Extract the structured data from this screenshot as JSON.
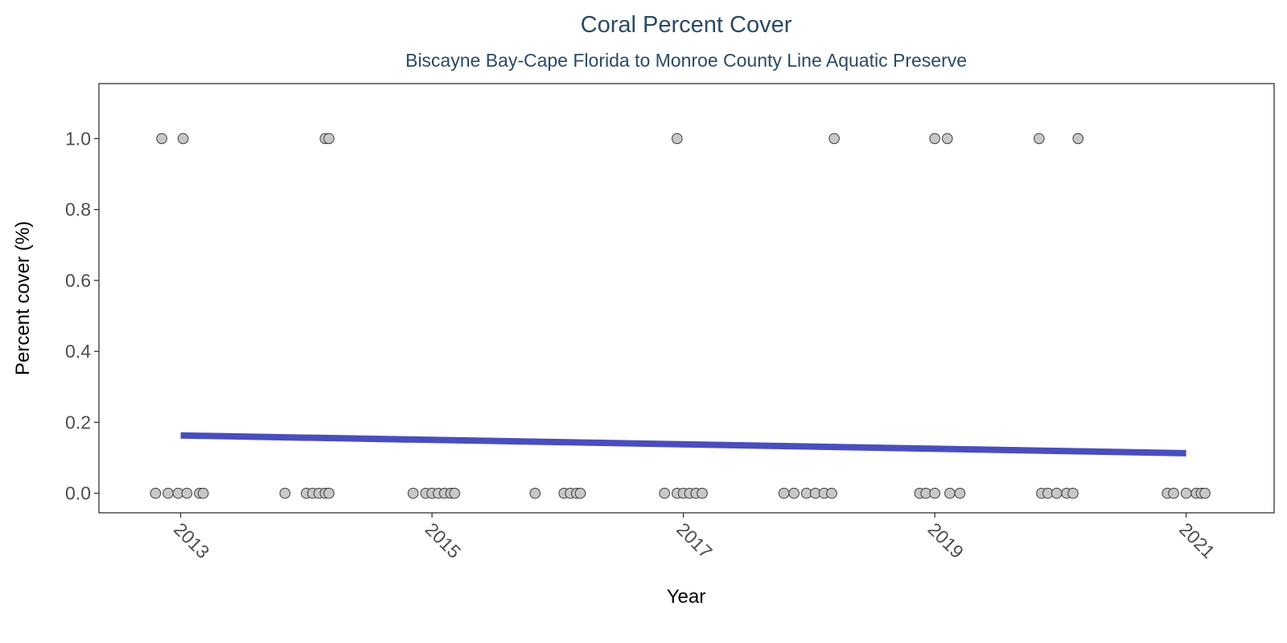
{
  "chart_data": {
    "type": "scatter",
    "title": "Coral Percent Cover",
    "subtitle": "Biscayne Bay-Cape Florida to Monroe County Line Aquatic Preserve",
    "xlabel": "Year",
    "ylabel": "Percent cover (%)",
    "xlim": [
      2012.35,
      2021.7
    ],
    "ylim": [
      -0.055,
      1.155
    ],
    "x_ticks": [
      2013,
      2015,
      2017,
      2019,
      2021
    ],
    "x_tick_labels": [
      "2013",
      "2015",
      "2017",
      "2019",
      "2021"
    ],
    "y_ticks": [
      0.0,
      0.2,
      0.4,
      0.6,
      0.8,
      1.0
    ],
    "y_tick_labels": [
      "0.0",
      "0.2",
      "0.4",
      "0.6",
      "0.8",
      "1.0"
    ],
    "grid": false,
    "colors": {
      "title": "#2b4a66",
      "points_fill": "#c8c8c8",
      "points_stroke": "#3a3a3a",
      "trend": "#4a4ebd",
      "frame": "#333333"
    },
    "points": {
      "x": [
        2012.85,
        2013.02,
        2014.15,
        2014.18,
        2016.95,
        2018.2,
        2019.0,
        2019.1,
        2019.83,
        2020.14,
        2012.8,
        2012.9,
        2012.98,
        2013.05,
        2013.15,
        2013.18,
        2013.83,
        2014.0,
        2014.05,
        2014.1,
        2014.15,
        2014.18,
        2014.85,
        2014.95,
        2015.0,
        2015.05,
        2015.1,
        2015.15,
        2015.18,
        2015.82,
        2016.05,
        2016.1,
        2016.15,
        2016.18,
        2016.85,
        2016.95,
        2017.0,
        2017.05,
        2017.1,
        2017.15,
        2017.8,
        2017.88,
        2017.98,
        2018.05,
        2018.12,
        2018.18,
        2018.88,
        2018.93,
        2019.0,
        2019.12,
        2019.2,
        2019.85,
        2019.9,
        2019.97,
        2020.05,
        2020.1,
        2020.85,
        2020.9,
        2021.0,
        2021.08,
        2021.12,
        2021.15
      ],
      "y": [
        1,
        1,
        1,
        1,
        1,
        1,
        1,
        1,
        1,
        1,
        0,
        0,
        0,
        0,
        0,
        0,
        0,
        0,
        0,
        0,
        0,
        0,
        0,
        0,
        0,
        0,
        0,
        0,
        0,
        0,
        0,
        0,
        0,
        0,
        0,
        0,
        0,
        0,
        0,
        0,
        0,
        0,
        0,
        0,
        0,
        0,
        0,
        0,
        0,
        0,
        0,
        0,
        0,
        0,
        0,
        0,
        0,
        0,
        0,
        0,
        0,
        0
      ]
    },
    "trend_line": {
      "x": [
        2013.0,
        2021.0
      ],
      "y": [
        0.163,
        0.113
      ]
    }
  }
}
